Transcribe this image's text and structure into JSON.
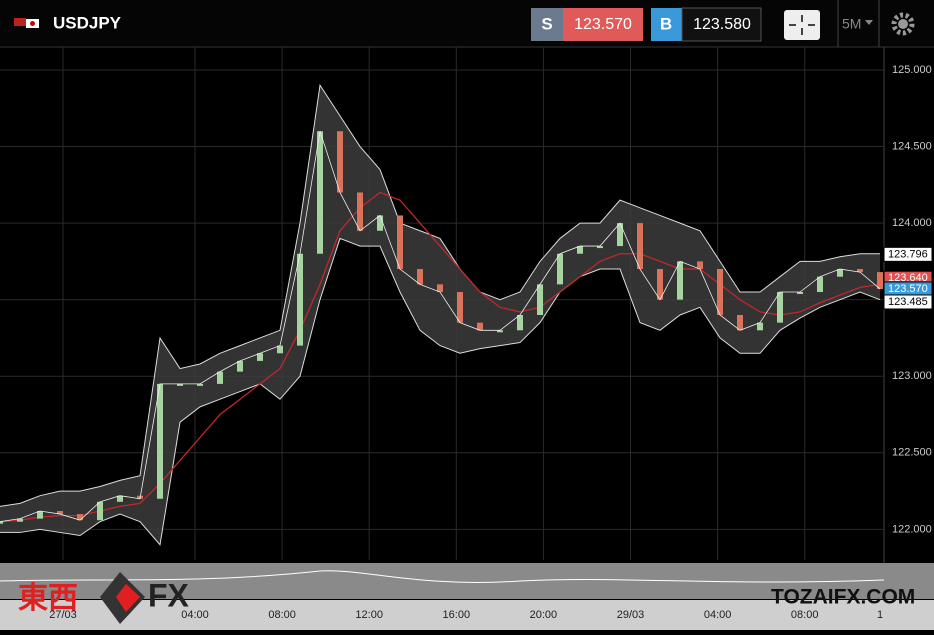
{
  "header": {
    "symbol": "USDJPY",
    "sell_label": "S",
    "sell_price": "123.570",
    "buy_label": "B",
    "buy_price": "123.580",
    "timeframe": "5M"
  },
  "price_chart": {
    "ylim": [
      121.8,
      125.15
    ],
    "yticks": [
      {
        "value": 125,
        "label": "125.000"
      },
      {
        "value": 124.5,
        "label": "124.500"
      },
      {
        "value": 124,
        "label": "124.000"
      },
      {
        "value": 123.5,
        "label": "123.500"
      },
      {
        "value": 123,
        "label": "123.000"
      },
      {
        "value": 122.5,
        "label": "122.500"
      },
      {
        "value": 122,
        "label": "122.000"
      }
    ],
    "time_labels": [
      "27/03",
      "04:00",
      "08:00",
      "12:00",
      "16:00",
      "20:00",
      "29/03",
      "04:00",
      "08:00",
      "1"
    ],
    "close": [
      122.05,
      122.07,
      122.12,
      122.1,
      122.06,
      122.18,
      122.22,
      122.2,
      122.95,
      122.95,
      122.95,
      123.03,
      123.1,
      123.15,
      123.2,
      123.8,
      124.6,
      124.2,
      123.95,
      124.05,
      123.7,
      123.6,
      123.55,
      123.35,
      123.3,
      123.3,
      123.4,
      123.6,
      123.8,
      123.85,
      123.85,
      124.0,
      123.7,
      123.5,
      123.75,
      123.7,
      123.4,
      123.3,
      123.35,
      123.55,
      123.55,
      123.65,
      123.7,
      123.68,
      123.57
    ],
    "upper": [
      122.15,
      122.17,
      122.22,
      122.25,
      122.25,
      122.28,
      122.32,
      122.35,
      123.25,
      123.05,
      123.08,
      123.15,
      123.2,
      123.25,
      123.3,
      124.0,
      124.9,
      124.7,
      124.5,
      124.35,
      124.0,
      123.95,
      123.9,
      123.7,
      123.55,
      123.5,
      123.55,
      123.75,
      123.9,
      124.0,
      124.0,
      124.15,
      124.1,
      124.05,
      124.0,
      123.95,
      123.75,
      123.55,
      123.55,
      123.65,
      123.75,
      123.75,
      123.78,
      123.8,
      123.8
    ],
    "lower": [
      121.98,
      121.98,
      122.0,
      121.98,
      121.96,
      122.05,
      122.1,
      122.05,
      121.9,
      122.7,
      122.8,
      122.85,
      122.9,
      122.95,
      122.85,
      123.0,
      123.5,
      123.9,
      123.85,
      123.85,
      123.55,
      123.3,
      123.2,
      123.15,
      123.18,
      123.2,
      123.22,
      123.35,
      123.55,
      123.65,
      123.7,
      123.7,
      123.35,
      123.3,
      123.4,
      123.45,
      123.25,
      123.15,
      123.15,
      123.3,
      123.38,
      123.45,
      123.5,
      123.55,
      123.5
    ],
    "moving_average": [
      122.05,
      122.06,
      122.08,
      122.09,
      122.09,
      122.12,
      122.15,
      122.17,
      122.3,
      122.45,
      122.6,
      122.75,
      122.85,
      122.95,
      123.05,
      123.3,
      123.6,
      123.95,
      124.1,
      124.2,
      124.15,
      124.0,
      123.85,
      123.7,
      123.55,
      123.45,
      123.42,
      123.45,
      123.55,
      123.65,
      123.75,
      123.8,
      123.8,
      123.75,
      123.7,
      123.7,
      123.6,
      123.5,
      123.42,
      123.4,
      123.42,
      123.48,
      123.53,
      123.58,
      123.6
    ],
    "price_tags": [
      {
        "value": 123.796,
        "label": "123.796",
        "color": "#ffffff"
      },
      {
        "value": 123.64,
        "label": "123.640",
        "color": "#e05050"
      },
      {
        "value": 123.57,
        "label": "123.570",
        "color": "#3a9ad9"
      },
      {
        "value": 123.485,
        "label": "123.485",
        "color": "#ffffff"
      }
    ]
  },
  "watermark": {
    "kanji": "東西",
    "fx": "FX",
    "site": "TOZAIFX.COM"
  }
}
